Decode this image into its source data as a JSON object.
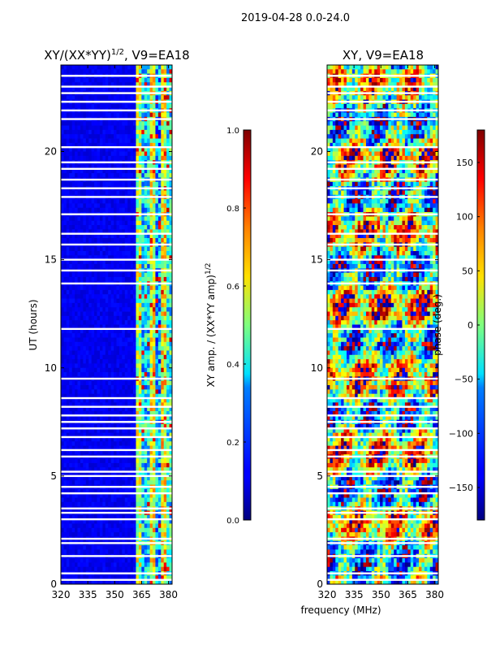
{
  "figure_title": "2019-04-28 0.0-24.0",
  "chart_data": [
    {
      "type": "heatmap",
      "title": "XY/(XX*YY)",
      "title_exponent": "1/2",
      "title_suffix": ", V9=EA18",
      "xlabel": "",
      "ylabel": "UT (hours)",
      "x_range": [
        320,
        382
      ],
      "y_range": [
        0,
        24
      ],
      "x_ticks": [
        320,
        335,
        350,
        365,
        380
      ],
      "y_ticks": [
        0,
        5,
        10,
        15,
        20
      ],
      "colorbar": {
        "label": "XY amp. / (XX*YY amp)",
        "label_exponent": "1/2",
        "range": [
          0.0,
          1.0
        ],
        "ticks": [
          "0.0",
          "0.2",
          "0.4",
          "0.6",
          "0.8",
          "1.0"
        ],
        "colormap": "jet"
      },
      "active_band_mhz": [
        362,
        382
      ],
      "flagged_hours": [
        0.2,
        0.5,
        1.3,
        1.9,
        2.1,
        3.0,
        3.3,
        3.5,
        4.2,
        4.5,
        5.0,
        5.2,
        5.9,
        6.2,
        6.8,
        7.2,
        7.5,
        7.8,
        8.2,
        8.6,
        9.5,
        11.8,
        13.9,
        14.5,
        15.0,
        15.7,
        16.2,
        17.1,
        17.9,
        18.3,
        18.7,
        19.2,
        19.5,
        20.2,
        21.5,
        21.9,
        22.3,
        22.7,
        23.0,
        23.5
      ]
    },
    {
      "type": "heatmap",
      "title": "XY, V9=EA18",
      "xlabel": "frequency (MHz)",
      "ylabel": "",
      "x_range": [
        320,
        382
      ],
      "y_range": [
        0,
        24
      ],
      "x_ticks": [
        320,
        335,
        350,
        365,
        380
      ],
      "y_ticks": [
        0,
        5,
        10,
        15,
        20
      ],
      "colorbar": {
        "label": "phase (deg.)",
        "range": [
          -180,
          180
        ],
        "ticks": [
          "−150",
          "−100",
          "−50",
          "0",
          "50",
          "100",
          "150"
        ],
        "tick_values": [
          -150,
          -100,
          -50,
          0,
          50,
          100,
          150
        ],
        "colormap": "jet"
      },
      "flagged_hours": [
        0.2,
        0.5,
        1.3,
        1.9,
        2.1,
        3.0,
        3.3,
        3.5,
        4.2,
        4.5,
        5.0,
        5.2,
        5.9,
        6.2,
        6.8,
        7.2,
        7.5,
        7.8,
        8.2,
        8.6,
        9.5,
        11.8,
        13.9,
        14.5,
        15.0,
        15.7,
        16.2,
        17.1,
        17.9,
        18.3,
        18.7,
        19.2,
        19.5,
        20.2,
        21.5,
        21.9,
        22.3,
        22.7,
        23.0,
        23.5
      ]
    }
  ]
}
